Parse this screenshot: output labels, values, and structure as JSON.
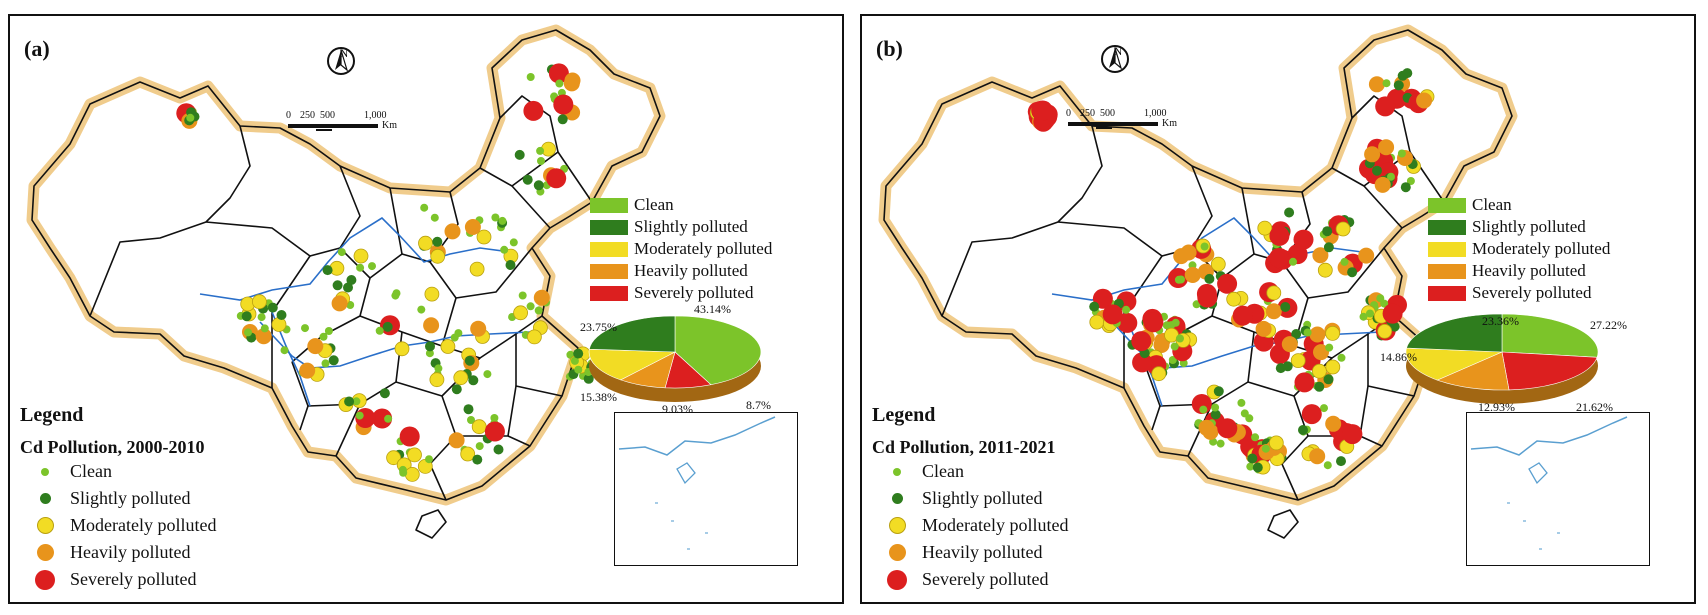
{
  "panels": [
    {
      "tag": "(a)",
      "legend_title": "Legend",
      "legend_subtitle": "Cd Pollution, 2000-2010",
      "north": "N",
      "scale": {
        "ticks": [
          "0",
          "250",
          "500",
          "1,000"
        ],
        "unit": "Km"
      },
      "pie": {
        "values": [
          43.14,
          8.7,
          9.03,
          15.38,
          23.75
        ],
        "labels": [
          "43.14%",
          "8.7%",
          "9.03%",
          "15.38%",
          "23.75%"
        ]
      }
    },
    {
      "tag": "(b)",
      "legend_title": "Legend",
      "legend_subtitle": "Cd Pollution, 2011-2021",
      "north": "N",
      "scale": {
        "ticks": [
          "0",
          "250",
          "500",
          "1,000"
        ],
        "unit": "Km"
      },
      "pie": {
        "values": [
          27.22,
          21.62,
          12.93,
          14.86,
          23.36
        ],
        "labels": [
          "27.22%",
          "21.62%",
          "12.93%",
          "14.86%",
          "23.36%"
        ]
      }
    }
  ],
  "categories": [
    "Clean",
    "Slightly polluted",
    "Moderately polluted",
    "Heavily polluted",
    "Severely polluted"
  ],
  "colors": {
    "clean": "#7cc42a",
    "slightly": "#2f7d1e",
    "moderately": "#f2dc24",
    "heavily": "#e8941c",
    "severely": "#dc1f1f",
    "border_glow": "#f0cc8c",
    "river": "#2a6fc9"
  }
}
